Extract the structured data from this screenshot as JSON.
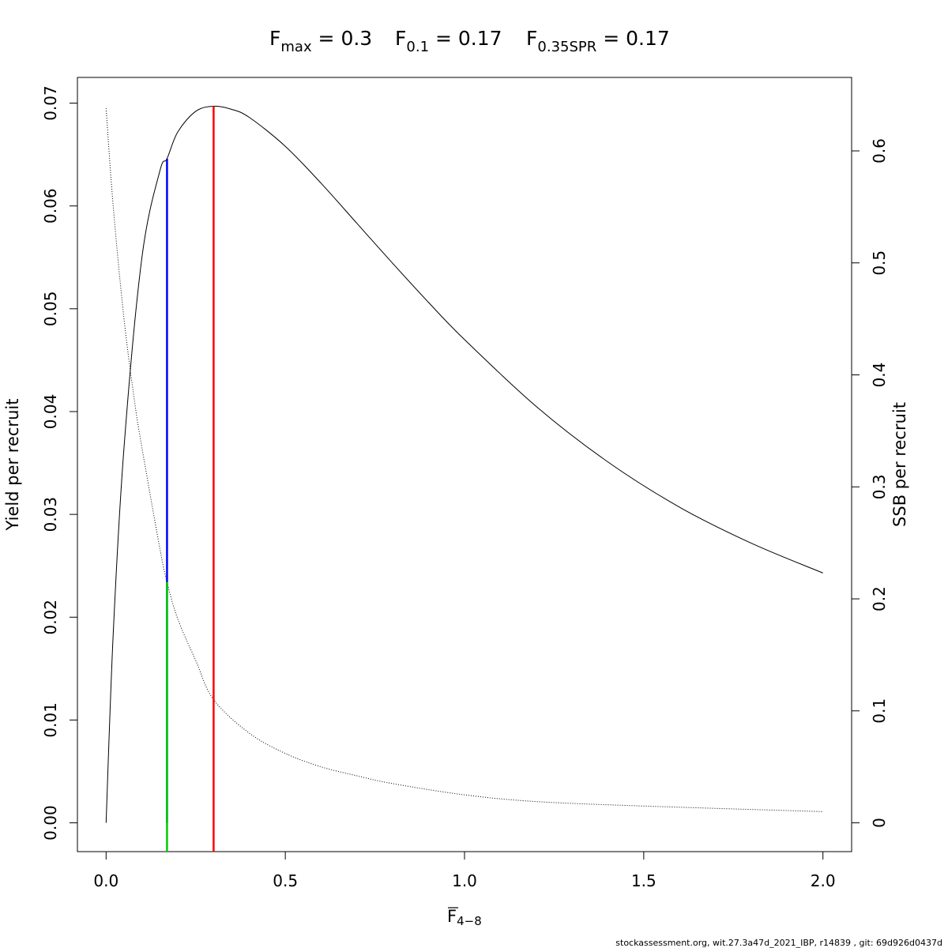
{
  "title": {
    "fmax": {
      "base": "F",
      "sub": "max",
      "rest": " = 0.3"
    },
    "f01": {
      "base": "F",
      "sub": "0.1",
      "rest": " = 0.17"
    },
    "fspr": {
      "base": "F",
      "sub": "0.35SPR",
      "rest": " = 0.17"
    }
  },
  "footer": "stockassessment.org, wit.27.3a47d_2021_IBP, r14839 , git: 69d926d0437d",
  "chart_data": {
    "type": "line",
    "xlabel": {
      "base": "F",
      "sub": "4−8"
    },
    "ylabel": "Yield per recruit",
    "y2label": "SSB per recruit",
    "xlim": [
      -0.08,
      2.08
    ],
    "ylim": [
      -0.0028,
      0.0725
    ],
    "y2lim": [
      -0.0257,
      0.6656
    ],
    "x_ticks": [
      "0.0",
      "0.5",
      "1.0",
      "1.5",
      "2.0"
    ],
    "x_tick_values": [
      0.0,
      0.5,
      1.0,
      1.5,
      2.0
    ],
    "y_ticks": [
      "0.00",
      "0.01",
      "0.02",
      "0.03",
      "0.04",
      "0.05",
      "0.06",
      "0.07"
    ],
    "y_tick_values": [
      0.0,
      0.01,
      0.02,
      0.03,
      0.04,
      0.05,
      0.06,
      0.07
    ],
    "y2_ticks": [
      "0",
      "0.1",
      "0.2",
      "0.3",
      "0.4",
      "0.5",
      "0.6"
    ],
    "y2_tick_values": [
      0.0,
      0.1,
      0.2,
      0.3,
      0.4,
      0.5,
      0.6
    ],
    "series": [
      {
        "axis": "left",
        "style": "solid",
        "color": "#000000",
        "x": [
          0.0,
          0.02,
          0.05,
          0.1,
          0.15,
          0.17,
          0.2,
          0.25,
          0.3,
          0.35,
          0.4,
          0.5,
          0.6,
          0.7,
          0.8,
          0.9,
          1.0,
          1.2,
          1.4,
          1.6,
          1.8,
          2.0
        ],
        "y": [
          0.0,
          0.0185,
          0.0365,
          0.055,
          0.0634,
          0.0646,
          0.0672,
          0.0692,
          0.0697,
          0.0694,
          0.0686,
          0.0658,
          0.0622,
          0.0583,
          0.0544,
          0.0506,
          0.047,
          0.0405,
          0.0351,
          0.0307,
          0.0272,
          0.0243
        ]
      },
      {
        "axis": "right",
        "style": "dotted",
        "color": "#000000",
        "x": [
          0.0,
          0.02,
          0.05,
          0.08,
          0.1,
          0.15,
          0.17,
          0.2,
          0.25,
          0.3,
          0.4,
          0.5,
          0.6,
          0.7,
          0.8,
          1.0,
          1.2,
          1.5,
          2.0
        ],
        "y": [
          0.638,
          0.55,
          0.45,
          0.375,
          0.335,
          0.245,
          0.215,
          0.182,
          0.145,
          0.11,
          0.08,
          0.062,
          0.05,
          0.042,
          0.035,
          0.025,
          0.019,
          0.015,
          0.01
        ]
      }
    ],
    "reference_lines": [
      {
        "x": 0.17,
        "y_from": 0.0,
        "y_to": 0.0646,
        "axis": "left",
        "color": "#0000ff"
      },
      {
        "x": 0.17,
        "y_from": -0.0257,
        "y_to": 0.215,
        "axis": "right",
        "color": "#00cc00"
      },
      {
        "x": 0.3,
        "y_from": -0.0028,
        "y_to": 0.0697,
        "axis": "left",
        "color": "#ff0000"
      }
    ],
    "grid": false,
    "legend": "none"
  }
}
